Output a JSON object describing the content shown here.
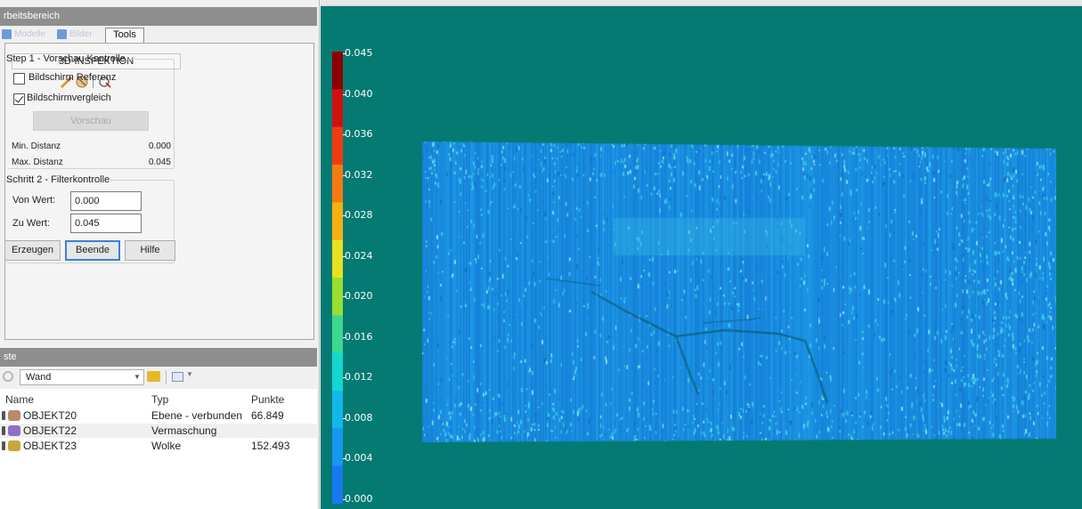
{
  "workspace": {
    "title": "rbeitsbereich",
    "tabs": [
      {
        "label": "Modelle",
        "active": false
      },
      {
        "label": "Bilder",
        "active": false
      },
      {
        "label": "Tools",
        "active": true
      }
    ]
  },
  "inspection": {
    "title": "3D-INSPEKTION",
    "icons": [
      "paint-brush-icon",
      "no-entry-icon",
      "stamp-icon"
    ],
    "step1": {
      "legend": "Step 1 - Vorschau Kontrolle",
      "checkbox_reference": {
        "label": "Bildschirm Referenz",
        "checked": false
      },
      "checkbox_compare": {
        "label": "Bildschirmvergleich",
        "checked": true
      },
      "preview_button": "Vorschau",
      "min_distance_label": "Min. Distanz",
      "min_distance_value": "0.000",
      "max_distance_label": "Max. Distanz",
      "max_distance_value": "0.045"
    },
    "step2": {
      "legend": "Schritt 2 - Filterkontrolle",
      "from_label": "Von Wert:",
      "from_value": "0.000",
      "to_label": "Zu Wert:",
      "to_value": "0.045"
    },
    "buttons": {
      "generate": "Erzeugen",
      "end": "Beende",
      "help": "Hilfe"
    }
  },
  "list": {
    "title": "ste",
    "filter_value": "Wand",
    "columns": {
      "name": "Name",
      "type": "Typ",
      "points": "Punkte"
    },
    "rows": [
      {
        "name": "OBJEKT20",
        "type": "Ebene - verbunden",
        "points": "66.849",
        "icon": "plane-object-icon"
      },
      {
        "name": "OBJEKT22",
        "type": "Vermaschung",
        "points": "",
        "icon": "mesh-object-icon"
      },
      {
        "name": "OBJEKT23",
        "type": "Wolke",
        "points": "152.493",
        "icon": "cloud-object-icon"
      }
    ]
  },
  "viewport": {
    "background_color": "#047a72",
    "colorbar": {
      "ticks": [
        "0.045",
        "0.040",
        "0.036",
        "0.032",
        "0.028",
        "0.024",
        "0.020",
        "0.016",
        "0.012",
        "0.008",
        "0.004",
        "0.000"
      ],
      "colors": [
        "#8b0000",
        "#d11010",
        "#f03b10",
        "#f77a10",
        "#f7b010",
        "#e8e020",
        "#9ade30",
        "#3ed890",
        "#12d8d0",
        "#10b8e8",
        "#1598f0",
        "#1878f0"
      ]
    },
    "point_cloud_base_color": "#1a8fe0"
  }
}
